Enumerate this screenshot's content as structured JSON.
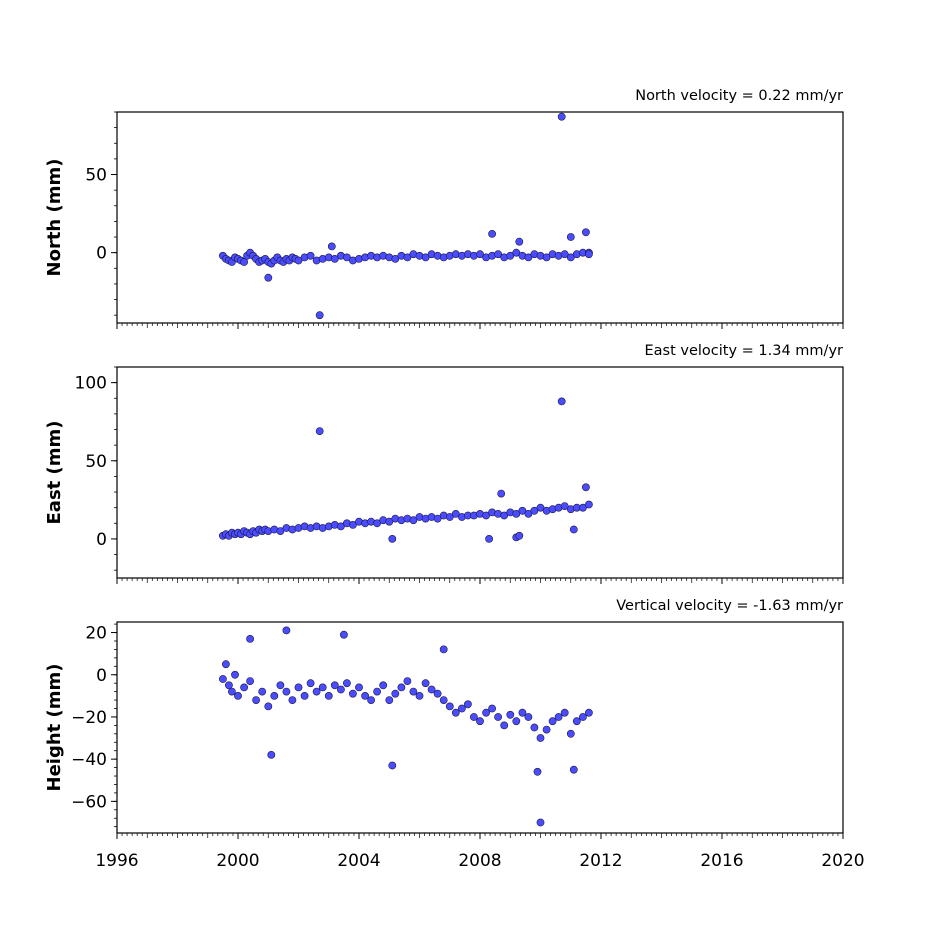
{
  "chart_data": [
    {
      "type": "scatter",
      "title": "North velocity = 0.22 mm/yr",
      "ylabel": "North (mm)",
      "xlim": [
        1996,
        2020
      ],
      "ylim": [
        -45,
        90
      ],
      "yticks": [
        "0",
        "50"
      ],
      "ytick_values": [
        0,
        50
      ],
      "marker_color": "#4b4bff",
      "series": [
        {
          "x": [
            1999.5,
            1999.6,
            1999.7,
            1999.8,
            1999.9,
            2000.0,
            2000.1,
            2000.2,
            2000.3,
            2000.4,
            2000.5,
            2000.6,
            2000.7,
            2000.8,
            2000.9,
            2001.0,
            2001.1,
            2001.2,
            2001.3,
            2001.4,
            2001.5,
            2001.6,
            2001.7,
            2001.8,
            2001.9,
            2002.0,
            2002.2,
            2002.4,
            2002.6,
            2002.8,
            2003.0,
            2003.2,
            2003.4,
            2003.6,
            2003.8,
            2004.0,
            2004.2,
            2004.4,
            2004.6,
            2004.8,
            2005.0,
            2005.2,
            2005.4,
            2005.6,
            2005.8,
            2006.0,
            2006.2,
            2006.4,
            2006.6,
            2006.8,
            2007.0,
            2007.2,
            2007.4,
            2007.6,
            2007.8,
            2008.0,
            2008.2,
            2008.4,
            2008.6,
            2008.8,
            2009.0,
            2009.2,
            2009.4,
            2009.6,
            2009.8,
            2010.0,
            2010.2,
            2010.4,
            2010.6,
            2010.8,
            2011.0,
            2011.2,
            2011.4,
            2011.6,
            2001.0,
            2002.7,
            2003.1,
            2008.4,
            2009.3,
            2010.7,
            2011.0,
            2011.5,
            2011.6
          ],
          "y": [
            -2,
            -4,
            -5,
            -6,
            -3,
            -4,
            -5,
            -6,
            -2,
            0,
            -2,
            -4,
            -6,
            -5,
            -4,
            -6,
            -7,
            -5,
            -3,
            -5,
            -6,
            -4,
            -5,
            -3,
            -4,
            -5,
            -3,
            -2,
            -5,
            -4,
            -3,
            -4,
            -2,
            -3,
            -5,
            -4,
            -3,
            -2,
            -3,
            -2,
            -3,
            -4,
            -2,
            -3,
            -1,
            -2,
            -3,
            -1,
            -2,
            -3,
            -2,
            -1,
            -2,
            -1,
            -2,
            -1,
            -3,
            -2,
            -1,
            -3,
            -2,
            0,
            -2,
            -3,
            -1,
            -2,
            -3,
            -1,
            -2,
            -1,
            -3,
            -1,
            0,
            0,
            -16,
            -40,
            4,
            12,
            7,
            87,
            10,
            13,
            -1
          ]
        }
      ]
    },
    {
      "type": "scatter",
      "title": "East velocity = 1.34 mm/yr",
      "ylabel": "East (mm)",
      "xlim": [
        1996,
        2020
      ],
      "ylim": [
        -25,
        110
      ],
      "yticks": [
        "0",
        "50",
        "100"
      ],
      "ytick_values": [
        0,
        50,
        100
      ],
      "marker_color": "#4b4bff",
      "series": [
        {
          "x": [
            1999.5,
            1999.6,
            1999.7,
            1999.8,
            1999.9,
            2000.0,
            2000.1,
            2000.2,
            2000.3,
            2000.4,
            2000.5,
            2000.6,
            2000.7,
            2000.8,
            2000.9,
            2001.0,
            2001.2,
            2001.4,
            2001.6,
            2001.8,
            2002.0,
            2002.2,
            2002.4,
            2002.6,
            2002.8,
            2003.0,
            2003.2,
            2003.4,
            2003.6,
            2003.8,
            2004.0,
            2004.2,
            2004.4,
            2004.6,
            2004.8,
            2005.0,
            2005.2,
            2005.4,
            2005.6,
            2005.8,
            2006.0,
            2006.2,
            2006.4,
            2006.6,
            2006.8,
            2007.0,
            2007.2,
            2007.4,
            2007.6,
            2007.8,
            2008.0,
            2008.2,
            2008.4,
            2008.6,
            2008.8,
            2009.0,
            2009.2,
            2009.4,
            2009.6,
            2009.8,
            2010.0,
            2010.2,
            2010.4,
            2010.6,
            2010.8,
            2011.0,
            2011.2,
            2011.4,
            2011.6,
            2002.7,
            2010.7,
            2005.1,
            2008.3,
            2009.2,
            2009.3,
            2008.7,
            2011.1,
            2011.5
          ],
          "y": [
            2,
            3,
            2,
            4,
            3,
            4,
            3,
            5,
            4,
            3,
            5,
            4,
            6,
            5,
            6,
            5,
            6,
            5,
            7,
            6,
            7,
            8,
            7,
            8,
            7,
            8,
            9,
            8,
            10,
            9,
            11,
            10,
            11,
            10,
            12,
            11,
            13,
            12,
            13,
            12,
            14,
            13,
            14,
            13,
            15,
            14,
            16,
            14,
            15,
            15,
            16,
            15,
            17,
            16,
            15,
            17,
            16,
            18,
            16,
            18,
            20,
            18,
            19,
            20,
            21,
            19,
            20,
            20,
            22,
            69,
            88,
            0,
            0,
            1,
            2,
            29,
            6,
            33
          ]
        }
      ]
    },
    {
      "type": "scatter",
      "title": "Vertical velocity = -1.63 mm/yr",
      "ylabel": "Height (mm)",
      "xlim": [
        1996,
        2020
      ],
      "ylim": [
        -75,
        25
      ],
      "yticks": [
        "20",
        "0",
        "−20",
        "−40",
        "−60"
      ],
      "ytick_values": [
        20,
        0,
        -20,
        -40,
        -60
      ],
      "xticks": [
        "1996",
        "2000",
        "2004",
        "2008",
        "2012",
        "2016",
        "2020"
      ],
      "xtick_values": [
        1996,
        2000,
        2004,
        2008,
        2012,
        2016,
        2020
      ],
      "marker_color": "#4b4bff",
      "series": [
        {
          "x": [
            1999.5,
            1999.6,
            1999.7,
            1999.8,
            1999.9,
            2000.0,
            2000.2,
            2000.4,
            2000.6,
            2000.8,
            2001.0,
            2001.2,
            2001.4,
            2001.6,
            2001.8,
            2002.0,
            2002.2,
            2002.4,
            2002.6,
            2002.8,
            2003.0,
            2003.2,
            2003.4,
            2003.6,
            2003.8,
            2004.0,
            2004.2,
            2004.4,
            2004.6,
            2004.8,
            2005.0,
            2005.2,
            2005.4,
            2005.6,
            2005.8,
            2006.0,
            2006.2,
            2006.4,
            2006.6,
            2006.8,
            2007.0,
            2007.2,
            2007.4,
            2007.6,
            2007.8,
            2008.0,
            2008.2,
            2008.4,
            2008.6,
            2008.8,
            2009.0,
            2009.2,
            2009.4,
            2009.6,
            2009.8,
            2010.0,
            2010.2,
            2010.4,
            2010.6,
            2010.8,
            2011.0,
            2011.2,
            2011.4,
            2011.6,
            2001.6,
            2003.5,
            2006.8,
            2005.1,
            2010.0,
            2000.4,
            2001.1,
            2011.1,
            2009.9
          ],
          "y": [
            -2,
            5,
            -5,
            -8,
            0,
            -10,
            -6,
            -3,
            -12,
            -8,
            -15,
            -10,
            -5,
            -8,
            -12,
            -6,
            -10,
            -4,
            -8,
            -6,
            -10,
            -5,
            -7,
            -4,
            -9,
            -6,
            -10,
            -12,
            -8,
            -5,
            -12,
            -9,
            -6,
            -3,
            -8,
            -10,
            -4,
            -7,
            -9,
            -12,
            -15,
            -18,
            -16,
            -14,
            -20,
            -22,
            -18,
            -16,
            -20,
            -24,
            -19,
            -22,
            -18,
            -20,
            -25,
            -30,
            -26,
            -22,
            -20,
            -18,
            -28,
            -22,
            -20,
            -18,
            21,
            19,
            12,
            -43,
            -70,
            17,
            -38,
            -45,
            -46
          ]
        }
      ]
    }
  ]
}
